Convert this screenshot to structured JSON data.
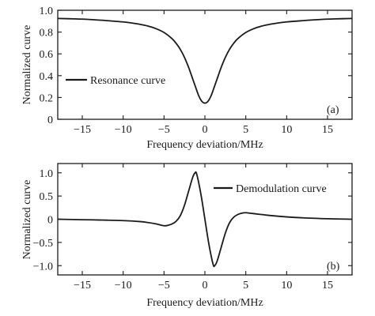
{
  "chart_data": [
    {
      "type": "line",
      "panel_label": "(a)",
      "xlabel": "Frequency deviation/MHz",
      "ylabel": "Normalized curve",
      "xlim": [
        -18,
        18
      ],
      "ylim": [
        0,
        1.0
      ],
      "xticks": [
        -15,
        -10,
        -5,
        0,
        5,
        10,
        15
      ],
      "xtick_labels": [
        "−15",
        "−10",
        "−5",
        "0",
        "5",
        "10",
        "15"
      ],
      "yticks": [
        0,
        0.2,
        0.4,
        0.6,
        0.8,
        1.0
      ],
      "ytick_labels": [
        "0",
        "0.2",
        "0.4",
        "0.6",
        "0.8",
        "1.0"
      ],
      "legend": {
        "position": "left",
        "entries": [
          "Resonance curve"
        ]
      },
      "grid": false,
      "series": [
        {
          "name": "Resonance curve",
          "x": [
            -18,
            -16,
            -14,
            -12,
            -10,
            -9,
            -8,
            -7,
            -6,
            -5,
            -4,
            -3.5,
            -3,
            -2.5,
            -2,
            -1.5,
            -1,
            -0.75,
            -0.5,
            -0.25,
            0,
            0.25,
            0.5,
            0.75,
            1,
            1.5,
            2,
            2.5,
            3,
            3.5,
            4,
            5,
            6,
            7,
            8,
            9,
            10,
            12,
            14,
            16,
            18
          ],
          "y": [
            0.925,
            0.921,
            0.915,
            0.905,
            0.893,
            0.884,
            0.872,
            0.856,
            0.832,
            0.796,
            0.738,
            0.695,
            0.64,
            0.568,
            0.478,
            0.372,
            0.265,
            0.215,
            0.178,
            0.155,
            0.148,
            0.155,
            0.178,
            0.215,
            0.265,
            0.372,
            0.478,
            0.568,
            0.64,
            0.695,
            0.738,
            0.796,
            0.832,
            0.856,
            0.872,
            0.884,
            0.893,
            0.905,
            0.915,
            0.921,
            0.925
          ]
        }
      ]
    },
    {
      "type": "line",
      "panel_label": "(b)",
      "xlabel": "Frequency deviation/MHz",
      "ylabel": "Normalized curve",
      "xlim": [
        -18,
        18
      ],
      "ylim": [
        -1.2,
        1.2
      ],
      "xticks": [
        -15,
        -10,
        -5,
        0,
        5,
        10,
        15
      ],
      "xtick_labels": [
        "−15",
        "−10",
        "−5",
        "0",
        "5",
        "10",
        "15"
      ],
      "yticks": [
        -1.0,
        -0.5,
        0,
        0.5,
        1.0
      ],
      "ytick_labels": [
        "−1.0",
        "−0.5",
        "0",
        "0.5",
        "1.0"
      ],
      "legend": {
        "position": "top-right",
        "entries": [
          "Demodulation curve"
        ]
      },
      "grid": false,
      "series": [
        {
          "name": "Demodulation curve",
          "x": [
            -18,
            -15,
            -12,
            -10,
            -8,
            -7,
            -6,
            -5,
            -4.5,
            -4,
            -3.5,
            -3,
            -2.5,
            -2,
            -1.5,
            -1.2,
            -1,
            -0.5,
            0,
            0.5,
            1,
            1.2,
            1.5,
            2,
            2.5,
            3,
            3.5,
            4,
            4.5,
            5,
            5.5,
            6,
            7,
            8,
            10,
            12,
            15,
            18
          ],
          "y": [
            0.0,
            -0.01,
            -0.02,
            -0.03,
            -0.05,
            -0.07,
            -0.1,
            -0.14,
            -0.13,
            -0.1,
            -0.04,
            0.08,
            0.3,
            0.6,
            0.9,
            1.0,
            0.97,
            0.55,
            0.0,
            -0.55,
            -0.97,
            -1.0,
            -0.9,
            -0.6,
            -0.3,
            -0.08,
            0.04,
            0.1,
            0.13,
            0.14,
            0.13,
            0.12,
            0.1,
            0.08,
            0.05,
            0.03,
            0.01,
            0.0
          ]
        }
      ]
    }
  ]
}
